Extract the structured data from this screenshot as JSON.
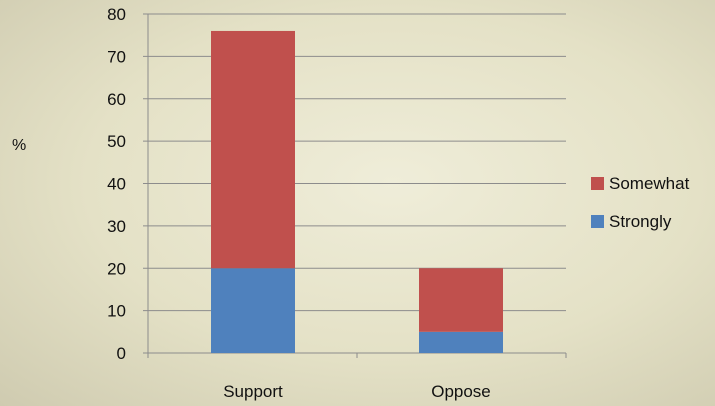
{
  "chart_data": {
    "type": "bar",
    "stacked": true,
    "title": "",
    "xlabel": "",
    "ylabel": "%",
    "ylim": [
      0,
      80
    ],
    "yticks": [
      0,
      10,
      20,
      30,
      40,
      50,
      60,
      70,
      80
    ],
    "grid": true,
    "legend_position": "right",
    "categories": [
      "Support",
      "Oppose"
    ],
    "series": [
      {
        "name": "Strongly",
        "values": [
          20,
          5
        ],
        "color": "#4f81bd"
      },
      {
        "name": "Somewhat",
        "values": [
          56,
          15
        ],
        "color": "#c0504d"
      }
    ],
    "legend_order": [
      "Somewhat",
      "Strongly"
    ]
  }
}
